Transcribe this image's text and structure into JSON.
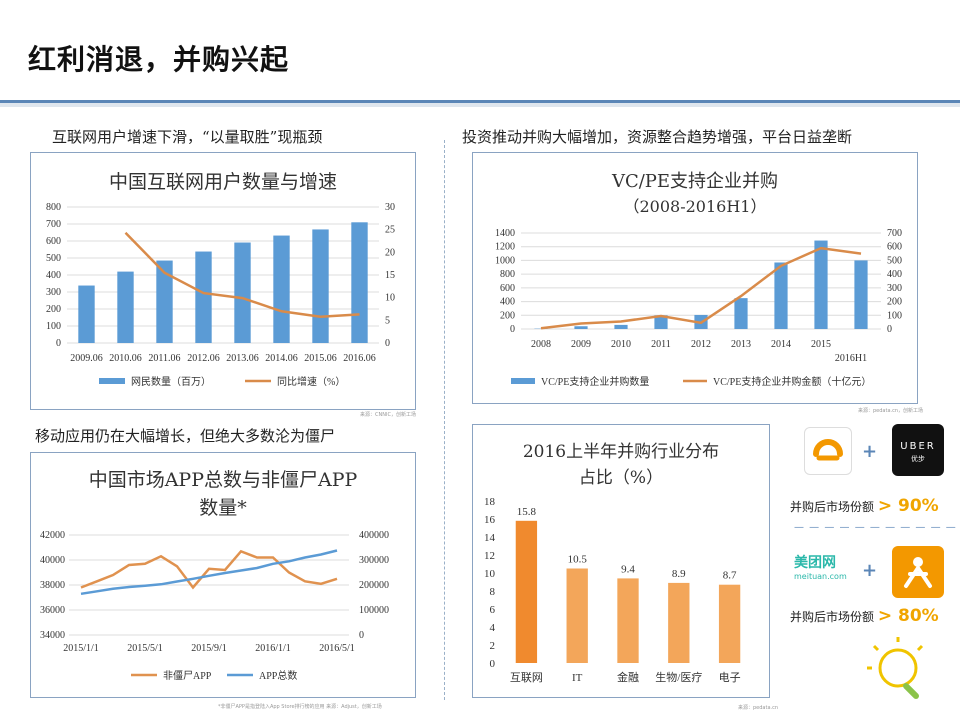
{
  "title": "红利消退，并购兴起",
  "sections": {
    "tl": "互联网用户增速下滑，“以量取胜”现瓶颈",
    "tr": "投资推动并购大幅增加，资源整合趋势增强，平台日益垄断",
    "bl": "移动应用仍在大幅增长，但绝大多数沦为僵尸"
  },
  "sources": {
    "tl": "来源：CNNIC，创新工场",
    "tr": "来源：pedata.cn，创新工场",
    "bl": "*非僵尸APP是指登陆入App Store排行榜的应用   来源：Adjust，创新工场",
    "br": "来源：pedata.cn"
  },
  "side": {
    "uber_top": "UBER",
    "uber_sub": "优步",
    "share1_label": "并购后市场份额",
    "share1_value": "> 90%",
    "dash": "— — — — — — — — — — —",
    "meituan": "美团网",
    "meituan_sub": "meituan.com",
    "share2_label": "并购后市场份额",
    "share2_value": "> 80%"
  },
  "chart_data": [
    {
      "type": "bar",
      "title": "中国互联网用户数量与增速",
      "categories": [
        "2009.06",
        "2010.06",
        "2011.06",
        "2012.06",
        "2013.06",
        "2014.06",
        "2015.06",
        "2016.06"
      ],
      "series": [
        {
          "name": "网民数量（百万）",
          "kind": "bar",
          "axis": "left",
          "values": [
            338,
            420,
            485,
            538,
            591,
            632,
            668,
            710
          ]
        },
        {
          "name": "同比增速（%）",
          "kind": "line",
          "axis": "right",
          "values": [
            null,
            24.3,
            15.5,
            11.0,
            9.9,
            7.0,
            5.8,
            6.3
          ]
        }
      ],
      "ylim": [
        0,
        800
      ],
      "y_ticks": [
        0,
        100,
        200,
        300,
        400,
        500,
        600,
        700,
        800
      ],
      "y2lim": [
        0,
        30
      ],
      "y2_ticks": [
        0,
        5,
        10,
        15,
        20,
        25,
        30
      ],
      "grid": true,
      "legend": "bottom",
      "colors": {
        "bar": "#5b9bd5",
        "line": "#d98b4a"
      }
    },
    {
      "type": "bar",
      "title": "VC/PE支持企业并购",
      "subtitle": "（2008-2016H1）",
      "categories": [
        "2008",
        "2009",
        "2010",
        "2011",
        "2012",
        "2013",
        "2014",
        "2015",
        "2016H1"
      ],
      "series": [
        {
          "name": "VC/PE支持企业并购数量",
          "kind": "bar",
          "axis": "left",
          "values": [
            5,
            40,
            60,
            200,
            205,
            450,
            970,
            1290,
            1000
          ]
        },
        {
          "name": "VC/PE支持企业并购金额（十亿元）",
          "kind": "line",
          "axis": "right",
          "values": [
            5,
            40,
            55,
            95,
            45,
            240,
            460,
            590,
            550
          ]
        }
      ],
      "ylim": [
        0,
        1400
      ],
      "y_ticks": [
        0,
        200,
        400,
        600,
        800,
        1000,
        1200,
        1400
      ],
      "y2lim": [
        0,
        700
      ],
      "y2_ticks": [
        0,
        100,
        200,
        300,
        400,
        500,
        600,
        700
      ],
      "grid": true,
      "legend": "bottom",
      "colors": {
        "bar": "#5b9bd5",
        "line": "#d98b4a"
      }
    },
    {
      "type": "line",
      "title": "中国市场APP总数与非僵尸APP",
      "subtitle": "数量*",
      "x_ticks": [
        "2015/1/1",
        "2015/5/1",
        "2015/9/1",
        "2016/1/1",
        "2016/5/1"
      ],
      "series": [
        {
          "name": "非僵尸APP",
          "axis": "left",
          "values": [
            37800,
            38300,
            38800,
            39600,
            39700,
            40300,
            39500,
            37800,
            39300,
            39200,
            40700,
            40200,
            40200,
            39000,
            38300,
            38100,
            38500
          ]
        },
        {
          "name": "APP总数",
          "axis": "right",
          "values": [
            165000,
            175000,
            185000,
            192000,
            197000,
            203000,
            214000,
            225000,
            237000,
            248000,
            258000,
            268000,
            285000,
            295000,
            310000,
            322000,
            338000
          ]
        }
      ],
      "ylim": [
        34000,
        42000
      ],
      "y_ticks": [
        34000,
        36000,
        38000,
        40000,
        42000
      ],
      "y2lim": [
        0,
        400000
      ],
      "y2_ticks": [
        0,
        100000,
        200000,
        300000,
        400000
      ],
      "grid": true,
      "legend": "bottom",
      "colors": {
        "非僵尸APP": "#e0924f",
        "APP总数": "#5b9bd5"
      }
    },
    {
      "type": "bar",
      "title": "2016上半年并购行业分布",
      "subtitle": "占比（%）",
      "categories": [
        "互联网",
        "IT",
        "金融",
        "生物/医疗",
        "电子"
      ],
      "values": [
        15.8,
        10.5,
        9.4,
        8.9,
        8.7
      ],
      "ylim": [
        0,
        18
      ],
      "y_ticks": [
        0,
        2,
        4,
        6,
        8,
        10,
        12,
        14,
        16,
        18
      ],
      "grid": false,
      "colors": {
        "first": "#f08a2e",
        "rest": "#f3a65a"
      }
    }
  ]
}
